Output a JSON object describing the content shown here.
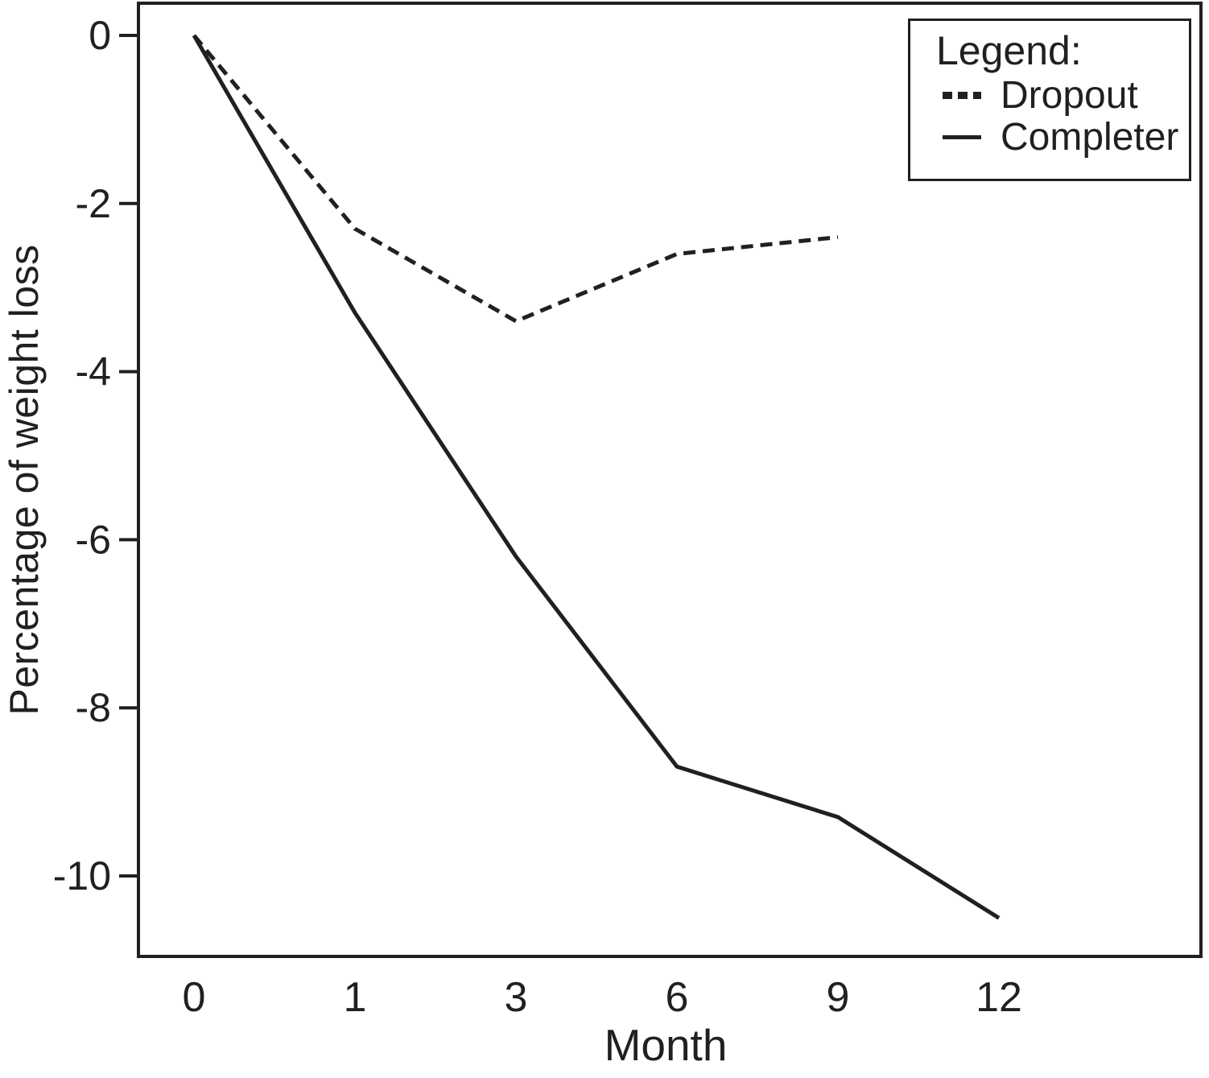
{
  "figure": {
    "background": "#ffffff",
    "ink": "#231f20"
  },
  "chart_data": {
    "type": "line",
    "title": "",
    "xlabel": "Month",
    "ylabel": "Percentage of weight loss",
    "x_tick_labels": [
      "0",
      "1",
      "3",
      "6",
      "9",
      "12"
    ],
    "x_categories": [
      0,
      1,
      3,
      6,
      9,
      12
    ],
    "y_ticks": [
      0,
      -2,
      -4,
      -6,
      -8,
      -10
    ],
    "ylim": [
      0.4,
      -11
    ],
    "grid": false,
    "legend": {
      "title": "Legend:",
      "position": "top-right",
      "entries": [
        {
          "label": "Dropout",
          "style": "dashed"
        },
        {
          "label": "Completer",
          "style": "solid"
        }
      ]
    },
    "series": [
      {
        "name": "Dropout",
        "style": "dashed",
        "months": [
          0,
          1,
          3,
          6,
          9
        ],
        "values": [
          0,
          -2.3,
          -3.4,
          -2.6,
          -2.4
        ]
      },
      {
        "name": "Completer",
        "style": "solid",
        "months": [
          0,
          1,
          3,
          6,
          9,
          12
        ],
        "values": [
          0,
          -3.3,
          -6.2,
          -8.7,
          -9.3,
          -10.5
        ]
      }
    ]
  }
}
